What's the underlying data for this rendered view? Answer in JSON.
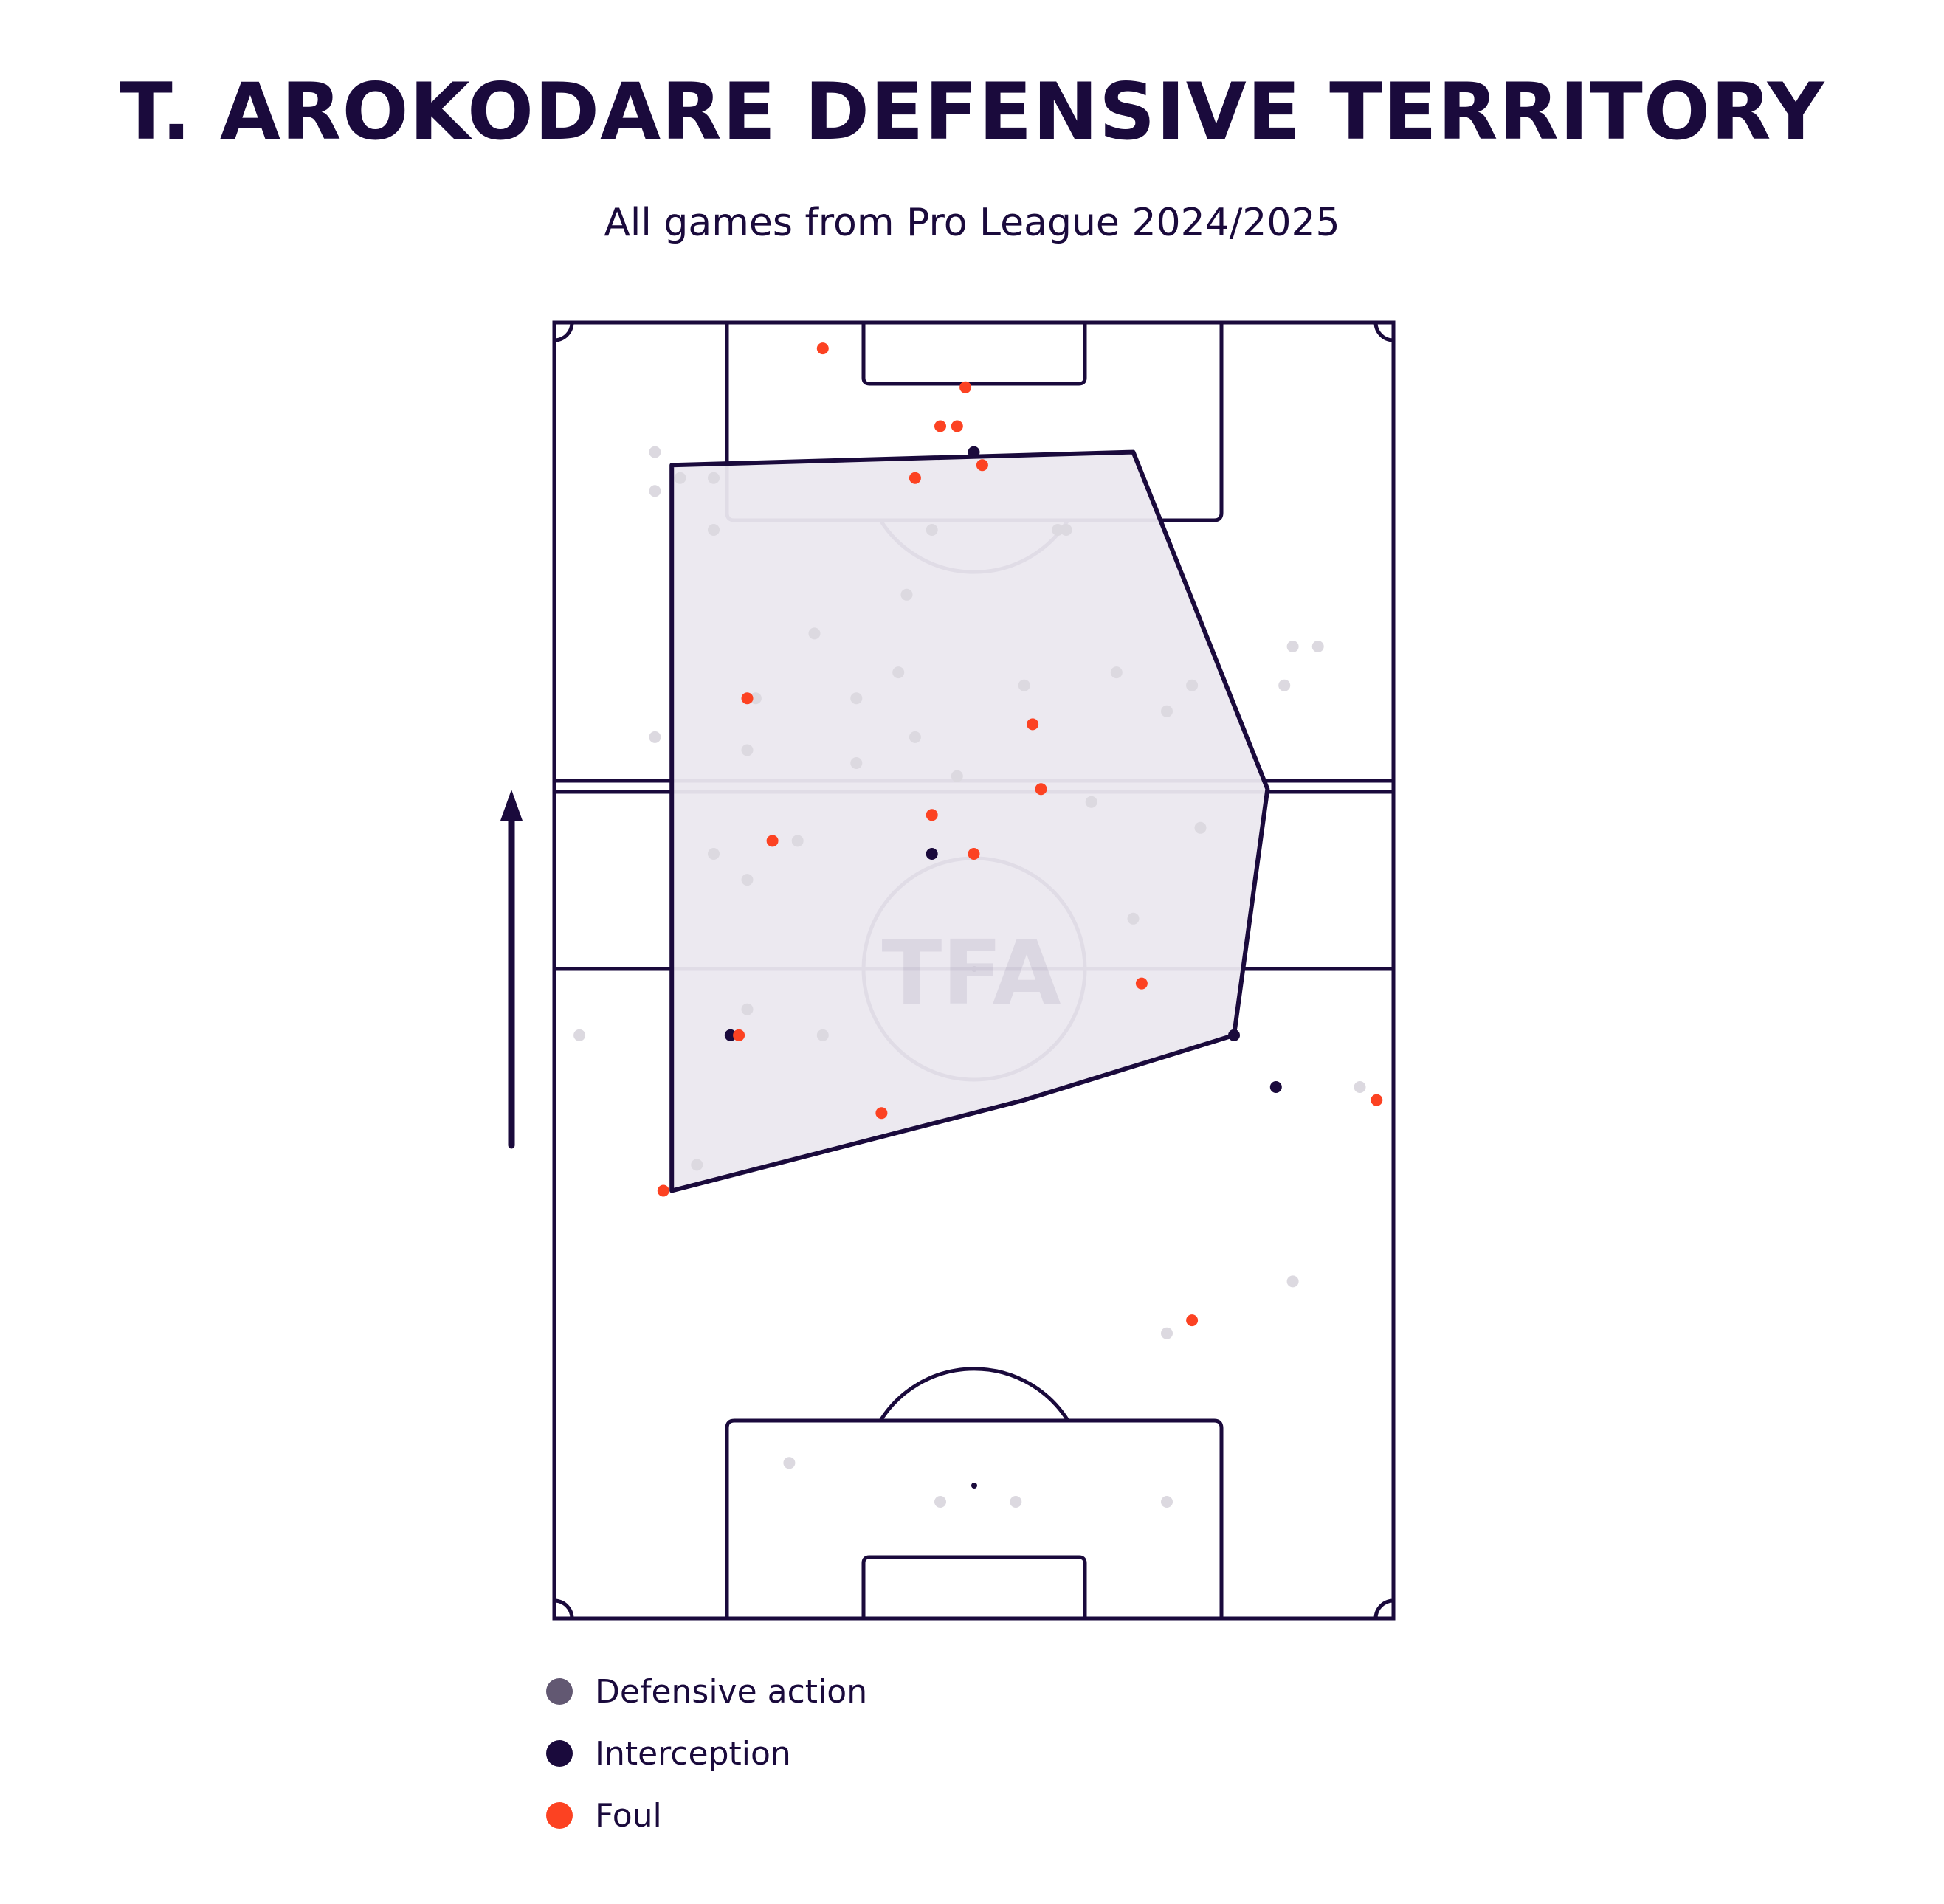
{
  "header": {
    "title": "T. AROKODARE DEFENSIVE TERRITORY",
    "subtitle": "All games from Pro League 2024/2025"
  },
  "watermark": "TFA",
  "colors": {
    "ink": "#1a0a3c",
    "defensive_action": "#dcd9e0",
    "interception": "#1a0a3c",
    "foul": "#fc4222",
    "territory_fill": "#ebe8ef",
    "legend_defensive_action": "#625872"
  },
  "legend": {
    "items": [
      {
        "label": "Defensive action",
        "color": "#625872"
      },
      {
        "label": "Interception",
        "color": "#1a0a3c"
      },
      {
        "label": "Foul",
        "color": "#fc4222"
      }
    ]
  },
  "chart_data": {
    "type": "scatter",
    "pitch": "vertical",
    "attacking_direction": "up",
    "x_range": [
      0,
      100
    ],
    "y_range": [
      0,
      100
    ],
    "series": [
      {
        "name": "Defensive action",
        "points": [
          [
            12,
            90
          ],
          [
            12,
            87
          ],
          [
            15,
            88
          ],
          [
            19,
            84
          ],
          [
            19,
            88
          ],
          [
            31,
            76
          ],
          [
            42,
            79
          ],
          [
            45,
            84
          ],
          [
            60,
            84
          ],
          [
            61,
            84
          ],
          [
            12,
            68
          ],
          [
            24,
            71
          ],
          [
            36,
            71
          ],
          [
            41,
            73
          ],
          [
            43,
            68
          ],
          [
            56,
            72
          ],
          [
            67,
            73
          ],
          [
            73,
            70
          ],
          [
            76,
            72
          ],
          [
            88,
            75
          ],
          [
            87,
            72
          ],
          [
            91,
            75
          ],
          [
            48,
            65
          ],
          [
            58,
            64
          ],
          [
            36,
            66
          ],
          [
            64,
            63
          ],
          [
            23,
            67
          ],
          [
            29,
            60
          ],
          [
            23,
            57
          ],
          [
            19,
            59
          ],
          [
            77,
            61
          ],
          [
            69,
            54
          ],
          [
            23,
            47
          ],
          [
            22,
            45
          ],
          [
            3,
            45
          ],
          [
            32,
            45
          ],
          [
            96,
            41
          ],
          [
            17,
            35
          ],
          [
            88,
            26
          ],
          [
            73,
            22
          ],
          [
            28,
            12
          ],
          [
            46,
            9
          ],
          [
            55,
            9
          ],
          [
            73,
            9
          ]
        ]
      },
      {
        "name": "Interception",
        "points": [
          [
            50,
            90
          ],
          [
            45,
            59
          ],
          [
            21,
            45
          ],
          [
            81,
            45
          ],
          [
            86,
            41
          ]
        ]
      },
      {
        "name": "Foul",
        "points": [
          [
            32,
            98
          ],
          [
            49,
            95
          ],
          [
            46,
            92
          ],
          [
            48,
            92
          ],
          [
            43,
            88
          ],
          [
            51,
            89
          ],
          [
            23,
            71
          ],
          [
            57,
            69
          ],
          [
            58,
            64
          ],
          [
            45,
            62
          ],
          [
            26,
            60
          ],
          [
            50,
            59
          ],
          [
            70,
            49
          ],
          [
            22,
            45
          ],
          [
            39,
            39
          ],
          [
            13,
            33
          ],
          [
            76,
            23
          ],
          [
            98,
            40
          ]
        ]
      }
    ],
    "territory_polygon": [
      [
        14,
        89
      ],
      [
        69,
        90
      ],
      [
        85,
        64
      ],
      [
        81,
        45
      ],
      [
        56,
        40
      ],
      [
        14,
        33
      ]
    ]
  }
}
